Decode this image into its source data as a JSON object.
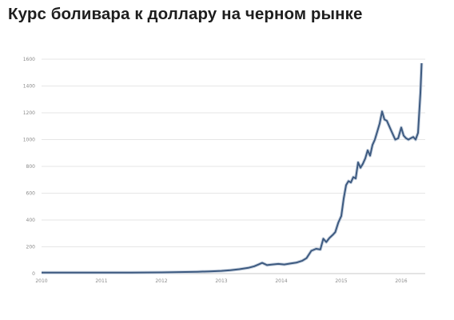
{
  "title": "Курс боливара к доллару на черном рынке",
  "chart_data": {
    "type": "line",
    "title": "Курс боливара к доллару на черном рынке",
    "xlabel": "",
    "ylabel": "",
    "xlim": [
      2010,
      2016.4
    ],
    "ylim": [
      0,
      1600
    ],
    "x_ticks": [
      "2010",
      "2011",
      "2012",
      "2013",
      "2014",
      "2015",
      "2016"
    ],
    "y_ticks": [
      "0",
      "200",
      "400",
      "600",
      "800",
      "1000",
      "1200",
      "1400",
      "1600"
    ],
    "grid": true,
    "line_color": "#3d5a80",
    "series": [
      {
        "name": "",
        "points": [
          [
            2010.0,
            7
          ],
          [
            2010.5,
            7
          ],
          [
            2011.0,
            8
          ],
          [
            2011.5,
            8
          ],
          [
            2012.0,
            9
          ],
          [
            2012.2,
            10
          ],
          [
            2012.4,
            12
          ],
          [
            2012.6,
            14
          ],
          [
            2012.8,
            17
          ],
          [
            2013.0,
            20
          ],
          [
            2013.15,
            25
          ],
          [
            2013.3,
            33
          ],
          [
            2013.45,
            43
          ],
          [
            2013.55,
            55
          ],
          [
            2013.62,
            68
          ],
          [
            2013.68,
            80
          ],
          [
            2013.72,
            72
          ],
          [
            2013.76,
            63
          ],
          [
            2013.85,
            68
          ],
          [
            2013.95,
            72
          ],
          [
            2014.05,
            68
          ],
          [
            2014.15,
            75
          ],
          [
            2014.25,
            82
          ],
          [
            2014.35,
            96
          ],
          [
            2014.42,
            115
          ],
          [
            2014.5,
            170
          ],
          [
            2014.58,
            185
          ],
          [
            2014.65,
            180
          ],
          [
            2014.7,
            260
          ],
          [
            2014.75,
            235
          ],
          [
            2014.8,
            265
          ],
          [
            2014.86,
            290
          ],
          [
            2014.9,
            310
          ],
          [
            2014.95,
            380
          ],
          [
            2015.0,
            430
          ],
          [
            2015.04,
            560
          ],
          [
            2015.08,
            660
          ],
          [
            2015.12,
            690
          ],
          [
            2015.16,
            680
          ],
          [
            2015.2,
            720
          ],
          [
            2015.24,
            710
          ],
          [
            2015.28,
            830
          ],
          [
            2015.32,
            790
          ],
          [
            2015.36,
            820
          ],
          [
            2015.4,
            860
          ],
          [
            2015.44,
            920
          ],
          [
            2015.48,
            880
          ],
          [
            2015.52,
            960
          ],
          [
            2015.56,
            1000
          ],
          [
            2015.6,
            1060
          ],
          [
            2015.64,
            1120
          ],
          [
            2015.68,
            1210
          ],
          [
            2015.72,
            1150
          ],
          [
            2015.76,
            1140
          ],
          [
            2015.8,
            1100
          ],
          [
            2015.85,
            1050
          ],
          [
            2015.9,
            1000
          ],
          [
            2015.95,
            1010
          ],
          [
            2016.0,
            1090
          ],
          [
            2016.04,
            1030
          ],
          [
            2016.08,
            1010
          ],
          [
            2016.12,
            1000
          ],
          [
            2016.16,
            1010
          ],
          [
            2016.2,
            1020
          ],
          [
            2016.24,
            1000
          ],
          [
            2016.28,
            1050
          ],
          [
            2016.3,
            1200
          ],
          [
            2016.32,
            1350
          ],
          [
            2016.34,
            1570
          ]
        ]
      }
    ]
  }
}
